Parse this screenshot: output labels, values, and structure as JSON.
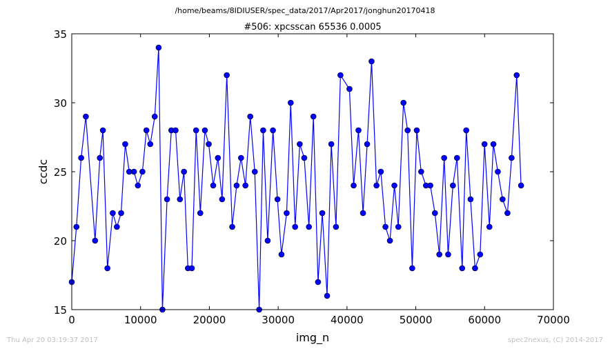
{
  "header": {
    "filepath": "/home/beams/8IDIUSER/spec_data/2017/Apr2017/jonghun20170418"
  },
  "footer": {
    "timestamp": "Thu Apr 20 03:19:37 2017",
    "credit": "spec2nexus, (C) 2014-2017"
  },
  "chart_data": {
    "type": "line",
    "title": "#506: xpcsscan 65536 0.0005",
    "xlabel": "img_n",
    "ylabel": "ccdc",
    "xlim": [
      0,
      70000
    ],
    "ylim": [
      15,
      35
    ],
    "xticks": [
      0,
      10000,
      20000,
      30000,
      40000,
      50000,
      60000,
      70000
    ],
    "yticks": [
      15,
      20,
      25,
      30,
      35
    ],
    "grid": false,
    "colors": {
      "series": "#0000ff"
    },
    "series": [
      {
        "x": [
          0,
          682,
          1365,
          2047,
          3390,
          4085,
          4525,
          5180,
          5955,
          6555,
          7175,
          7770,
          8350,
          9040,
          9610,
          10270,
          10850,
          11410,
          12060,
          12630,
          13180,
          13850,
          14470,
          15090,
          15720,
          16310,
          16880,
          17450,
          18070,
          18680,
          19350,
          19910,
          20560,
          21240,
          21850,
          22530,
          23320,
          23960,
          24600,
          25240,
          25940,
          26600,
          27240,
          27820,
          28470,
          29240,
          29900,
          30480,
          31230,
          31820,
          32460,
          33130,
          33790,
          34470,
          35120,
          35790,
          36410,
          37110,
          37720,
          38400,
          39050,
          40360,
          40970,
          41670,
          42330,
          42930,
          43570,
          44290,
          44920,
          45590,
          46240,
          46890,
          47460,
          48210,
          48810,
          49480,
          50140,
          50780,
          51480,
          52110,
          52780,
          53420,
          54120,
          54700,
          55390,
          55990,
          56740,
          57330,
          57960,
          58610,
          59350,
          59990,
          60700,
          61280,
          61920,
          62610,
          63320,
          63920,
          64660,
          65300
        ],
        "y": [
          17,
          21,
          26,
          29,
          20,
          26,
          28,
          18,
          22,
          21,
          22,
          27,
          25,
          25,
          24,
          25,
          28,
          27,
          29,
          34,
          15,
          23,
          28,
          28,
          23,
          25,
          18,
          18,
          28,
          22,
          28,
          27,
          24,
          26,
          23,
          32,
          21,
          24,
          26,
          24,
          29,
          25,
          15,
          28,
          20,
          28,
          23,
          19,
          22,
          30,
          21,
          27,
          26,
          21,
          29,
          17,
          22,
          16,
          27,
          21,
          32,
          31,
          24,
          28,
          22,
          27,
          33,
          24,
          25,
          21,
          20,
          24,
          21,
          30,
          28,
          18,
          28,
          25,
          24,
          24,
          22,
          19,
          26,
          19,
          24,
          26,
          18,
          28,
          23,
          18,
          19,
          27,
          21,
          27,
          25,
          23,
          22,
          26,
          32,
          24
        ]
      }
    ]
  }
}
